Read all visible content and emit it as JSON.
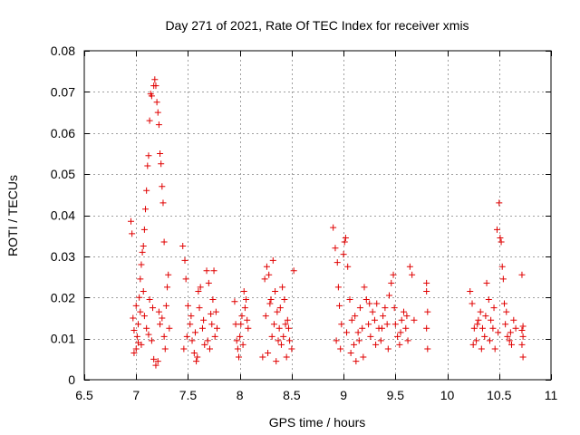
{
  "chart_data": {
    "type": "scatter",
    "title": "Day 271 of 2021, Rate Of TEC Index for receiver xmis",
    "xlabel": "GPS time / hours",
    "ylabel": "ROTI / TECUs",
    "xlim": [
      6.5,
      11
    ],
    "ylim": [
      0,
      0.08
    ],
    "x_ticks": [
      6.5,
      7,
      7.5,
      8,
      8.5,
      9,
      9.5,
      10,
      10.5,
      11
    ],
    "x_tick_labels": [
      "6.5",
      "7",
      "7.5",
      "8",
      "8.5",
      "9",
      "9.5",
      "10",
      "10.5",
      "11"
    ],
    "y_ticks": [
      0,
      0.01,
      0.02,
      0.03,
      0.04,
      0.05,
      0.06,
      0.07,
      0.08
    ],
    "y_tick_labels": [
      "0",
      "0.01",
      "0.02",
      "0.03",
      "0.04",
      "0.05",
      "0.06",
      "0.07",
      "0.08"
    ],
    "grid": true,
    "marker": "+",
    "color": "#e00000",
    "series": [
      {
        "name": "ROTI",
        "points": [
          [
            6.95,
            0.0385
          ],
          [
            6.96,
            0.0355
          ],
          [
            6.97,
            0.015
          ],
          [
            6.98,
            0.012
          ],
          [
            7.0,
            0.018
          ],
          [
            7.02,
            0.009
          ],
          [
            7.03,
            0.02
          ],
          [
            7.04,
            0.0165
          ],
          [
            7.05,
            0.028
          ],
          [
            7.06,
            0.031
          ],
          [
            7.07,
            0.0325
          ],
          [
            7.08,
            0.0365
          ],
          [
            7.09,
            0.0415
          ],
          [
            7.1,
            0.046
          ],
          [
            7.11,
            0.052
          ],
          [
            7.12,
            0.0545
          ],
          [
            7.13,
            0.063
          ],
          [
            7.14,
            0.0695
          ],
          [
            7.15,
            0.069
          ],
          [
            7.17,
            0.0715
          ],
          [
            7.18,
            0.073
          ],
          [
            7.19,
            0.0715
          ],
          [
            7.2,
            0.0675
          ],
          [
            7.21,
            0.065
          ],
          [
            7.22,
            0.062
          ],
          [
            7.23,
            0.055
          ],
          [
            7.24,
            0.0525
          ],
          [
            7.25,
            0.047
          ],
          [
            7.26,
            0.043
          ],
          [
            7.27,
            0.0335
          ],
          [
            7.0,
            0.0075
          ],
          [
            7.01,
            0.0105
          ],
          [
            7.02,
            0.0135
          ],
          [
            7.05,
            0.0085
          ],
          [
            7.08,
            0.0155
          ],
          [
            7.1,
            0.0125
          ],
          [
            7.12,
            0.011
          ],
          [
            7.15,
            0.0095
          ],
          [
            7.17,
            0.005
          ],
          [
            7.19,
            0.0035
          ],
          [
            7.21,
            0.0045
          ],
          [
            7.23,
            0.0135
          ],
          [
            7.25,
            0.015
          ],
          [
            7.27,
            0.0105
          ],
          [
            7.29,
            0.018
          ],
          [
            7.3,
            0.0225
          ],
          [
            7.31,
            0.0255
          ],
          [
            7.32,
            0.0125
          ],
          [
            6.98,
            0.0065
          ],
          [
            7.04,
            0.0245
          ],
          [
            7.07,
            0.0215
          ],
          [
            7.13,
            0.0195
          ],
          [
            7.16,
            0.0175
          ],
          [
            7.22,
            0.0165
          ],
          [
            7.28,
            0.0075
          ],
          [
            7.45,
            0.0325
          ],
          [
            7.47,
            0.029
          ],
          [
            7.48,
            0.0245
          ],
          [
            7.5,
            0.018
          ],
          [
            7.52,
            0.0135
          ],
          [
            7.54,
            0.0095
          ],
          [
            7.56,
            0.0065
          ],
          [
            7.58,
            0.0045
          ],
          [
            7.6,
            0.0215
          ],
          [
            7.62,
            0.0225
          ],
          [
            7.64,
            0.0125
          ],
          [
            7.66,
            0.0085
          ],
          [
            7.68,
            0.0265
          ],
          [
            7.7,
            0.0235
          ],
          [
            7.72,
            0.016
          ],
          [
            7.74,
            0.0195
          ],
          [
            7.76,
            0.0105
          ],
          [
            7.78,
            0.0125
          ],
          [
            7.46,
            0.0075
          ],
          [
            7.53,
            0.0155
          ],
          [
            7.57,
            0.0115
          ],
          [
            7.61,
            0.0175
          ],
          [
            7.65,
            0.0145
          ],
          [
            7.69,
            0.0095
          ],
          [
            7.73,
            0.0135
          ],
          [
            7.77,
            0.0165
          ],
          [
            7.49,
            0.0105
          ],
          [
            7.59,
            0.0055
          ],
          [
            7.71,
            0.0075
          ],
          [
            7.75,
            0.0265
          ],
          [
            7.95,
            0.019
          ],
          [
            7.96,
            0.0135
          ],
          [
            7.97,
            0.0095
          ],
          [
            7.98,
            0.0075
          ],
          [
            8.0,
            0.0105
          ],
          [
            8.02,
            0.0155
          ],
          [
            8.04,
            0.0215
          ],
          [
            8.06,
            0.0195
          ],
          [
            8.08,
            0.0125
          ],
          [
            7.99,
            0.0055
          ],
          [
            8.03,
            0.0085
          ],
          [
            8.05,
            0.0175
          ],
          [
            8.01,
            0.0135
          ],
          [
            8.07,
            0.0145
          ],
          [
            8.22,
            0.0055
          ],
          [
            8.24,
            0.0245
          ],
          [
            8.26,
            0.0275
          ],
          [
            8.28,
            0.0255
          ],
          [
            8.3,
            0.0195
          ],
          [
            8.32,
            0.029
          ],
          [
            8.34,
            0.0215
          ],
          [
            8.36,
            0.0165
          ],
          [
            8.38,
            0.0125
          ],
          [
            8.4,
            0.0085
          ],
          [
            8.42,
            0.0105
          ],
          [
            8.44,
            0.0135
          ],
          [
            8.46,
            0.0145
          ],
          [
            8.48,
            0.0095
          ],
          [
            8.5,
            0.0075
          ],
          [
            8.52,
            0.0265
          ],
          [
            8.27,
            0.0065
          ],
          [
            8.31,
            0.0105
          ],
          [
            8.35,
            0.0045
          ],
          [
            8.39,
            0.0175
          ],
          [
            8.43,
            0.0195
          ],
          [
            8.47,
            0.0125
          ],
          [
            8.25,
            0.0155
          ],
          [
            8.33,
            0.0135
          ],
          [
            8.41,
            0.0225
          ],
          [
            8.45,
            0.0055
          ],
          [
            8.29,
            0.0185
          ],
          [
            8.37,
            0.0095
          ],
          [
            8.9,
            0.037
          ],
          [
            8.92,
            0.032
          ],
          [
            8.94,
            0.0285
          ],
          [
            8.95,
            0.0225
          ],
          [
            8.96,
            0.018
          ],
          [
            8.98,
            0.0135
          ],
          [
            9.0,
            0.0305
          ],
          [
            9.01,
            0.0335
          ],
          [
            9.02,
            0.0345
          ],
          [
            9.04,
            0.0275
          ],
          [
            9.06,
            0.0195
          ],
          [
            9.08,
            0.0145
          ],
          [
            9.1,
            0.0085
          ],
          [
            9.12,
            0.0045
          ],
          [
            9.14,
            0.0115
          ],
          [
            9.16,
            0.0175
          ],
          [
            9.18,
            0.0125
          ],
          [
            9.2,
            0.0225
          ],
          [
            9.22,
            0.0195
          ],
          [
            9.24,
            0.0135
          ],
          [
            9.26,
            0.0105
          ],
          [
            9.28,
            0.0165
          ],
          [
            9.3,
            0.0145
          ],
          [
            9.32,
            0.0185
          ],
          [
            9.34,
            0.0125
          ],
          [
            9.36,
            0.0095
          ],
          [
            9.38,
            0.0155
          ],
          [
            9.4,
            0.0175
          ],
          [
            9.42,
            0.0135
          ],
          [
            9.44,
            0.0205
          ],
          [
            9.46,
            0.0235
          ],
          [
            9.48,
            0.0255
          ],
          [
            9.5,
            0.0135
          ],
          [
            9.52,
            0.0105
          ],
          [
            9.54,
            0.0085
          ],
          [
            9.56,
            0.0145
          ],
          [
            9.58,
            0.0165
          ],
          [
            9.6,
            0.0125
          ],
          [
            9.62,
            0.0095
          ],
          [
            9.64,
            0.0275
          ],
          [
            9.66,
            0.0255
          ],
          [
            9.68,
            0.0145
          ],
          [
            8.93,
            0.0095
          ],
          [
            8.97,
            0.0075
          ],
          [
            9.03,
            0.0115
          ],
          [
            9.07,
            0.0065
          ],
          [
            9.11,
            0.0155
          ],
          [
            9.15,
            0.0095
          ],
          [
            9.19,
            0.0055
          ],
          [
            9.25,
            0.0185
          ],
          [
            9.31,
            0.0085
          ],
          [
            9.37,
            0.0125
          ],
          [
            9.43,
            0.0075
          ],
          [
            9.49,
            0.0175
          ],
          [
            9.55,
            0.0115
          ],
          [
            9.61,
            0.0155
          ],
          [
            9.8,
            0.0235
          ],
          [
            9.8,
            0.0215
          ],
          [
            9.81,
            0.0165
          ],
          [
            9.8,
            0.0125
          ],
          [
            9.81,
            0.0075
          ],
          [
            10.22,
            0.0215
          ],
          [
            10.24,
            0.0185
          ],
          [
            10.26,
            0.0125
          ],
          [
            10.28,
            0.0095
          ],
          [
            10.3,
            0.0145
          ],
          [
            10.32,
            0.0165
          ],
          [
            10.34,
            0.0125
          ],
          [
            10.36,
            0.0105
          ],
          [
            10.38,
            0.0235
          ],
          [
            10.4,
            0.0195
          ],
          [
            10.42,
            0.0145
          ],
          [
            10.44,
            0.0125
          ],
          [
            10.46,
            0.0075
          ],
          [
            10.48,
            0.0365
          ],
          [
            10.5,
            0.043
          ],
          [
            10.51,
            0.0345
          ],
          [
            10.52,
            0.0335
          ],
          [
            10.53,
            0.0275
          ],
          [
            10.54,
            0.0245
          ],
          [
            10.55,
            0.0185
          ],
          [
            10.56,
            0.0135
          ],
          [
            10.58,
            0.0105
          ],
          [
            10.6,
            0.0095
          ],
          [
            10.62,
            0.0085
          ],
          [
            10.64,
            0.0145
          ],
          [
            10.66,
            0.0125
          ],
          [
            10.25,
            0.0085
          ],
          [
            10.29,
            0.0135
          ],
          [
            10.33,
            0.0075
          ],
          [
            10.37,
            0.0155
          ],
          [
            10.41,
            0.0095
          ],
          [
            10.45,
            0.0175
          ],
          [
            10.49,
            0.0115
          ],
          [
            10.57,
            0.0165
          ],
          [
            10.61,
            0.0115
          ],
          [
            10.72,
            0.0255
          ],
          [
            10.73,
            0.013
          ],
          [
            10.72,
            0.012
          ],
          [
            10.73,
            0.0105
          ],
          [
            10.72,
            0.0085
          ],
          [
            10.73,
            0.0055
          ]
        ]
      }
    ]
  }
}
